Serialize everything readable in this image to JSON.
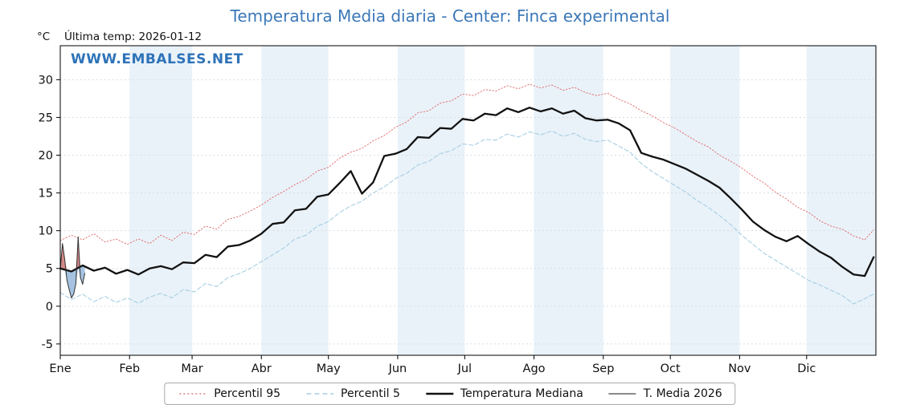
{
  "header": {
    "title": "Temperatura Media diaria - Center: Finca experimental",
    "y_unit_label": "°C",
    "last_temp_label": "Última temp: 2026-01-12",
    "watermark": "WWW.EMBALSES.NET"
  },
  "colors": {
    "title": "#3c78b8",
    "watermark": "#2e73b8",
    "band": "#e9f2f9",
    "grid": "#d7dfe6",
    "axis": "#000000",
    "p95": "#e06666",
    "p5": "#a6cee3",
    "median": "#111111",
    "t2026": "#333333",
    "fill_above": "#c96a6a",
    "fill_below": "#8fb4d9"
  },
  "chart_data": {
    "type": "line",
    "title": "Temperatura Media diaria - Center: Finca experimental",
    "ylabel": "°C",
    "xlim": [
      0,
      365
    ],
    "ylim": [
      -6.5,
      34.5
    ],
    "yticks": [
      -5,
      0,
      5,
      10,
      15,
      20,
      25,
      30
    ],
    "grid": "horizontal-dotted",
    "legend_position": "bottom",
    "months": [
      {
        "label": "Ene",
        "start": 0
      },
      {
        "label": "Feb",
        "start": 31
      },
      {
        "label": "Mar",
        "start": 59
      },
      {
        "label": "Abr",
        "start": 90
      },
      {
        "label": "May",
        "start": 120
      },
      {
        "label": "Jun",
        "start": 151
      },
      {
        "label": "Jul",
        "start": 181
      },
      {
        "label": "Ago",
        "start": 212
      },
      {
        "label": "Sep",
        "start": 243
      },
      {
        "label": "Oct",
        "start": 273
      },
      {
        "label": "Nov",
        "start": 304
      },
      {
        "label": "Dic",
        "start": 334
      }
    ],
    "shaded_month_indexes": [
      1,
      3,
      5,
      7,
      9,
      11
    ],
    "x_climatology": [
      0,
      5,
      10,
      15,
      20,
      25,
      30,
      35,
      40,
      45,
      50,
      55,
      60,
      65,
      70,
      75,
      80,
      85,
      90,
      95,
      100,
      105,
      110,
      115,
      120,
      125,
      130,
      135,
      140,
      145,
      150,
      155,
      160,
      165,
      170,
      175,
      180,
      185,
      190,
      195,
      200,
      205,
      210,
      215,
      220,
      225,
      230,
      235,
      240,
      245,
      250,
      255,
      260,
      265,
      270,
      275,
      280,
      285,
      290,
      295,
      300,
      305,
      310,
      315,
      320,
      325,
      330,
      335,
      340,
      345,
      350,
      355,
      360,
      364
    ],
    "series": [
      {
        "name": "Percentil 95",
        "style": "dotted",
        "values": [
          8.7,
          9.4,
          8.8,
          9.6,
          8.5,
          8.9,
          8.2,
          8.9,
          8.3,
          9.4,
          8.7,
          9.8,
          9.5,
          10.6,
          10.2,
          11.5,
          11.9,
          12.6,
          13.4,
          14.4,
          15.2,
          16.1,
          16.8,
          17.9,
          18.4,
          19.6,
          20.4,
          20.9,
          21.9,
          22.6,
          23.7,
          24.4,
          25.6,
          25.9,
          26.9,
          27.2,
          28.1,
          27.9,
          28.7,
          28.5,
          29.2,
          28.8,
          29.4,
          28.9,
          29.3,
          28.6,
          29.0,
          28.3,
          27.9,
          28.2,
          27.4,
          26.8,
          25.9,
          25.2,
          24.3,
          23.6,
          22.7,
          21.8,
          21.1,
          20.0,
          19.2,
          18.3,
          17.2,
          16.3,
          15.1,
          14.2,
          13.1,
          12.4,
          11.3,
          10.6,
          10.2,
          9.3,
          8.8,
          10.1
        ]
      },
      {
        "name": "Percentil 5",
        "style": "dashed",
        "values": [
          1.8,
          0.9,
          1.6,
          0.6,
          1.3,
          0.5,
          1.1,
          0.4,
          1.2,
          1.7,
          1.1,
          2.2,
          1.9,
          3.0,
          2.6,
          3.8,
          4.3,
          5.0,
          5.9,
          6.8,
          7.7,
          8.9,
          9.4,
          10.6,
          11.2,
          12.4,
          13.3,
          13.9,
          15.0,
          15.8,
          16.9,
          17.6,
          18.7,
          19.2,
          20.2,
          20.6,
          21.5,
          21.3,
          22.1,
          22.0,
          22.8,
          22.4,
          23.1,
          22.7,
          23.2,
          22.5,
          22.9,
          22.1,
          21.8,
          22.0,
          21.2,
          20.4,
          18.9,
          17.8,
          16.9,
          16.0,
          15.1,
          14.0,
          13.1,
          12.0,
          10.8,
          9.4,
          8.2,
          7.0,
          6.1,
          5.2,
          4.3,
          3.4,
          2.8,
          2.1,
          1.4,
          0.3,
          1.0,
          1.6
        ]
      },
      {
        "name": "Temperatura Mediana",
        "style": "solid",
        "values": [
          5.0,
          4.6,
          5.4,
          4.7,
          5.1,
          4.3,
          4.8,
          4.2,
          5.0,
          5.3,
          4.9,
          5.8,
          5.7,
          6.8,
          6.5,
          7.9,
          8.1,
          8.7,
          9.6,
          10.9,
          11.1,
          12.7,
          12.9,
          14.5,
          14.8,
          16.3,
          17.9,
          14.9,
          16.4,
          19.9,
          20.2,
          20.8,
          22.4,
          22.3,
          23.6,
          23.5,
          24.8,
          24.6,
          25.5,
          25.3,
          26.2,
          25.7,
          26.3,
          25.8,
          26.2,
          25.5,
          25.9,
          24.9,
          24.6,
          24.7,
          24.2,
          23.3,
          20.3,
          19.8,
          19.4,
          18.8,
          18.2,
          17.4,
          16.6,
          15.7,
          14.3,
          12.8,
          11.2,
          10.1,
          9.2,
          8.6,
          9.3,
          8.2,
          7.2,
          6.4,
          5.2,
          4.2,
          4.0,
          6.5
        ]
      }
    ],
    "t_media_2026": {
      "name": "T. Media 2026",
      "style": "thin",
      "x": [
        0,
        1,
        2,
        3,
        4,
        5,
        6,
        7,
        8,
        9,
        10,
        11
      ],
      "values": [
        4.9,
        8.3,
        6.2,
        3.4,
        2.2,
        1.1,
        1.6,
        3.0,
        9.2,
        3.8,
        2.9,
        4.4
      ]
    },
    "legend_items": [
      {
        "label": "Percentil 95",
        "style": "dotted"
      },
      {
        "label": "Percentil 5",
        "style": "dashed"
      },
      {
        "label": "Temperatura Mediana",
        "style": "solid"
      },
      {
        "label": "T. Media 2026",
        "style": "thin"
      }
    ]
  }
}
